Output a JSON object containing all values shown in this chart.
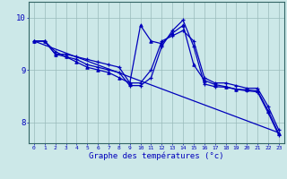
{
  "xlabel": "Graphe des températures (°c)",
  "background_color": "#cce8e8",
  "line_color": "#0000bb",
  "grid_color": "#99bbbb",
  "x_ticks": [
    0,
    1,
    2,
    3,
    4,
    5,
    6,
    7,
    8,
    9,
    10,
    11,
    12,
    13,
    14,
    15,
    16,
    17,
    18,
    19,
    20,
    21,
    22,
    23
  ],
  "ylim": [
    7.6,
    10.3
  ],
  "yticks": [
    8,
    9,
    10
  ],
  "series1_x": [
    0,
    1,
    2,
    3,
    4,
    5,
    6,
    7,
    8,
    9,
    10,
    11,
    12,
    13,
    14,
    15,
    16,
    17,
    18,
    19,
    20,
    21,
    22,
    23
  ],
  "series1_y": [
    9.55,
    9.55,
    9.3,
    9.3,
    9.25,
    9.2,
    9.15,
    9.1,
    9.05,
    8.75,
    8.75,
    9.0,
    9.55,
    9.65,
    9.75,
    9.55,
    8.85,
    8.75,
    8.75,
    8.7,
    8.65,
    8.65,
    8.3,
    7.85
  ],
  "series2_x": [
    0,
    1,
    2,
    3,
    4,
    5,
    6,
    7,
    8,
    9,
    10,
    11,
    12,
    13,
    14,
    15,
    16,
    17,
    18,
    19,
    20,
    21,
    22,
    23
  ],
  "series2_y": [
    9.55,
    9.55,
    9.3,
    9.25,
    9.15,
    9.05,
    9.0,
    8.95,
    8.85,
    8.75,
    9.85,
    9.55,
    9.5,
    9.7,
    9.85,
    9.1,
    8.8,
    8.72,
    8.68,
    8.63,
    8.62,
    8.6,
    8.22,
    7.78
  ],
  "series3_x": [
    0,
    1,
    2,
    3,
    4,
    5,
    6,
    7,
    8,
    9,
    10,
    11,
    12,
    13,
    14,
    15,
    16,
    17,
    18,
    19,
    20,
    21,
    22,
    23
  ],
  "series3_y": [
    9.55,
    9.55,
    9.35,
    9.25,
    9.2,
    9.1,
    9.05,
    9.0,
    8.95,
    8.7,
    8.7,
    8.85,
    9.45,
    9.75,
    9.95,
    9.45,
    8.73,
    8.68,
    8.67,
    8.63,
    8.6,
    8.58,
    8.18,
    7.75
  ],
  "series4_x": [
    0,
    23
  ],
  "series4_y": [
    9.55,
    7.8
  ]
}
